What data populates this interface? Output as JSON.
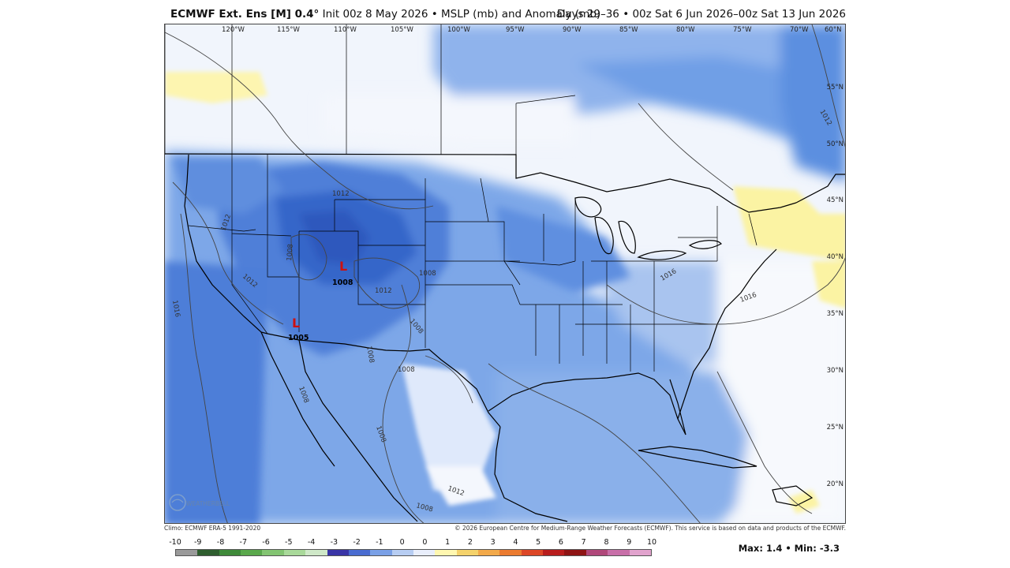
{
  "header": {
    "model": "ECMWF Ext. Ens [M] 0.4°",
    "run": "Init 00z 8 May 2026 • MSLP (mb) and Anomaly (mb)",
    "valid": "Days 29–36 • 00z Sat 6 Jun 2026–00z Sat 13 Jun 2026"
  },
  "map": {
    "lon_labels": [
      "120°W",
      "115°W",
      "110°W",
      "105°W",
      "100°W",
      "95°W",
      "90°W",
      "85°W",
      "80°W",
      "75°W",
      "70°W",
      "60°N"
    ],
    "lat_labels": [
      "55°N",
      "50°N",
      "45°N",
      "40°N",
      "35°N",
      "30°N",
      "25°N",
      "20°N"
    ],
    "contour_labels": [
      "1012",
      "1012",
      "1016",
      "1012",
      "1008",
      "1008",
      "1012",
      "1008",
      "1008",
      "1016",
      "1016",
      "1012",
      "1008",
      "1008",
      "1012",
      "1008",
      "1008"
    ],
    "lows": [
      {
        "symbol": "L",
        "value": "1008"
      },
      {
        "symbol": "L",
        "value": "1005"
      }
    ]
  },
  "footer": {
    "climo": "Climo: ECMWF ERA-5 1991-2020",
    "copyright": "© 2026 European Centre for Medium-Range Weather Forecasts (ECMWF). This service is based on data and products of the ECMWF.",
    "maxmin": "Max: 1.4 • Min: -3.3",
    "logo_text": "WEATHERBELL"
  },
  "colorbar": {
    "labels": [
      "-10",
      "-9",
      "-8",
      "-7",
      "-6",
      "-5",
      "-4",
      "-3",
      "-2",
      "-1",
      "0",
      "0",
      "1",
      "2",
      "3",
      "4",
      "5",
      "6",
      "7",
      "8",
      "9",
      "10"
    ],
    "colors": [
      "#9a9a9a",
      "#2f5e2f",
      "#3f8a3a",
      "#5aa84c",
      "#83c472",
      "#a9d99a",
      "#cfe8c8",
      "#3a35a6",
      "#4a6cd0",
      "#7aa0e6",
      "#b7cdf2",
      "#e9eefb",
      "#fff7b0",
      "#f4d26b",
      "#f2a94a",
      "#eb7b30",
      "#dc4727",
      "#b81d1d",
      "#8e1414",
      "#b0487a",
      "#c86fa8",
      "#e1a3cd"
    ]
  }
}
